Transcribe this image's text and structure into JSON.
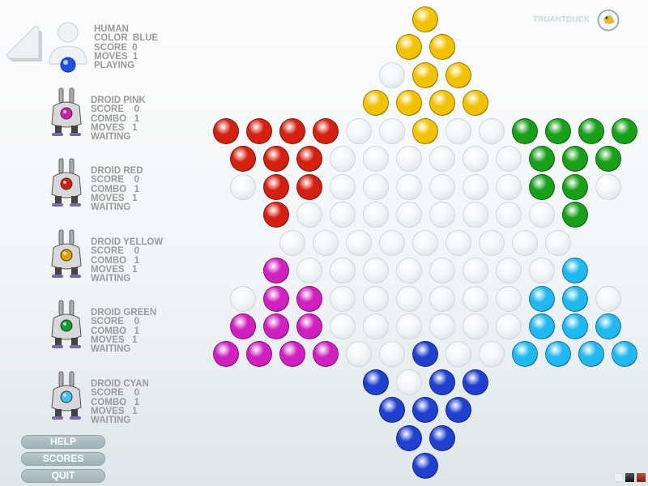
{
  "brand": {
    "name": "TRUANTDUCK",
    "logo_icon": "duck-icon"
  },
  "players": [
    {
      "lines": [
        "HUMAN",
        "COLOR  BLUE",
        "SCORE  0",
        "MOVES  1",
        "PLAYING"
      ],
      "color": "#2050e0"
    },
    {
      "lines": [
        "DROID PINK",
        "SCORE    0",
        "COMBO   1",
        "MOVES   1",
        "WAITING"
      ],
      "color": "#d020b0"
    },
    {
      "lines": [
        "DROID RED",
        "SCORE    0",
        "COMBO   1",
        "MOVES   1",
        "WAITING"
      ],
      "color": "#d02010"
    },
    {
      "lines": [
        "DROID YELLOW",
        "SCORE    0",
        "COMBO   1",
        "MOVES   1",
        "WAITING"
      ],
      "color": "#e0a000"
    },
    {
      "lines": [
        "DROID GREEN",
        "SCORE    0",
        "COMBO   1",
        "MOVES   1",
        "WAITING"
      ],
      "color": "#10a030"
    },
    {
      "lines": [
        "DROID CYAN",
        "SCORE    0",
        "COMBO   1",
        "MOVES   1",
        "WAITING"
      ],
      "color": "#40c0f0"
    }
  ],
  "buttons": {
    "help": "HELP",
    "scores": "SCORES",
    "quit": "QUIT"
  },
  "board": {
    "legend": {
      "Y": "#f2c200",
      "R": "#d42010",
      "G": "#18a018",
      "P": "#d020c0",
      "C": "#20b8f0",
      "B": "#2040d0",
      ".": "empty"
    },
    "rows": [
      "Y",
      "YY",
      ".YY",
      "YYYY",
      "RRRR..Y..GGGG",
      "RRR......GGG",
      ".RR......GG.",
      "R........G",
      ".........",
      "P........C",
      ".PP......CC.",
      "PPP......CCC",
      "PPPP..B..CCCC",
      "B.BB",
      "BBB",
      "BB",
      "B"
    ]
  },
  "theme_swatches": [
    "#eef2f5",
    "#222222",
    "#b04020"
  ]
}
